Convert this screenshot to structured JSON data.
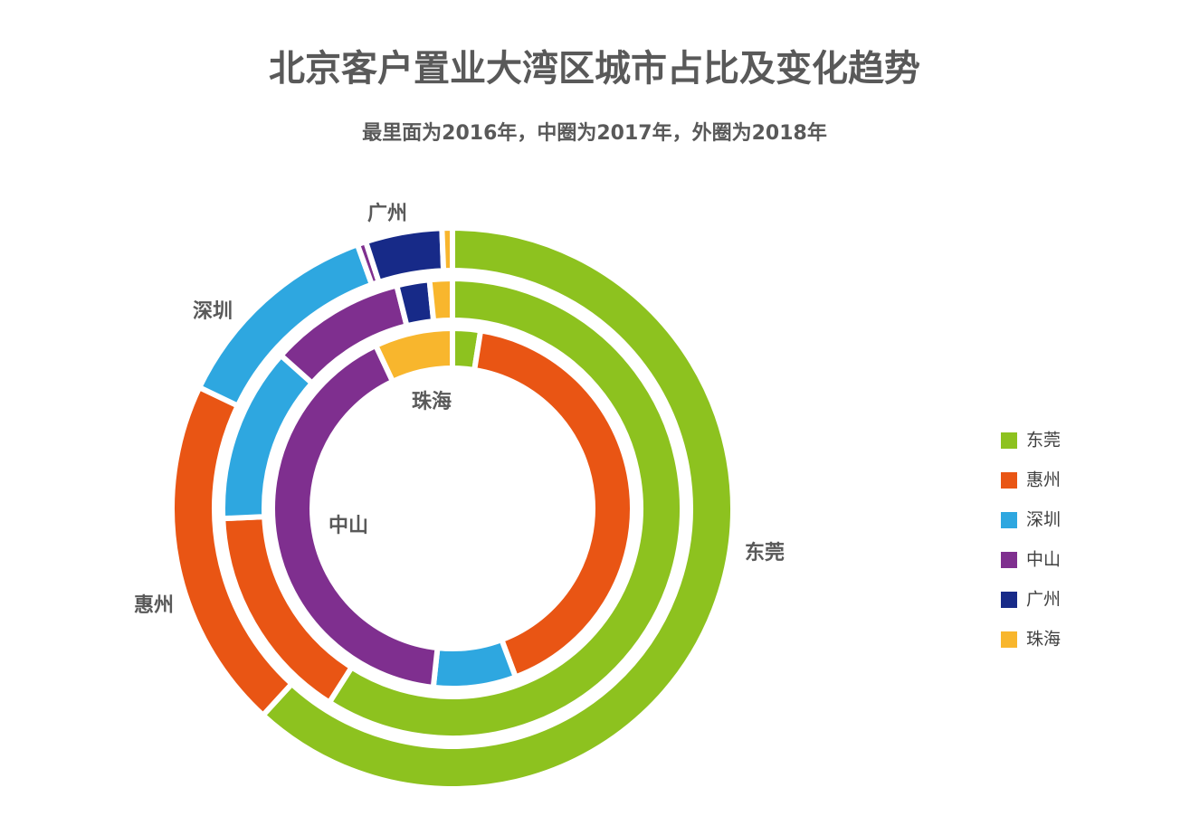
{
  "chart_data": {
    "type": "donut",
    "title": "北京客户置业大湾区城市占比及变化趋势",
    "subtitle": "最里面为2016年，中圈为2017年，外圈为2018年",
    "categories": [
      "东莞",
      "惠州",
      "深圳",
      "中山",
      "广州",
      "珠海"
    ],
    "colors": [
      "#8dc21f",
      "#e95514",
      "#2ea7e0",
      "#7f2f8f",
      "#172a88",
      "#f8b62d"
    ],
    "series": [
      {
        "values": [
          2.5,
          41.8,
          7.4,
          41.3,
          0,
          7.0
        ]
      },
      {
        "values": [
          59.0,
          15.3,
          12.3,
          9.5,
          2.3,
          1.6
        ]
      },
      {
        "values": [
          61.8,
          20.3,
          12.4,
          0.5,
          4.4,
          0.6
        ]
      }
    ]
  }
}
